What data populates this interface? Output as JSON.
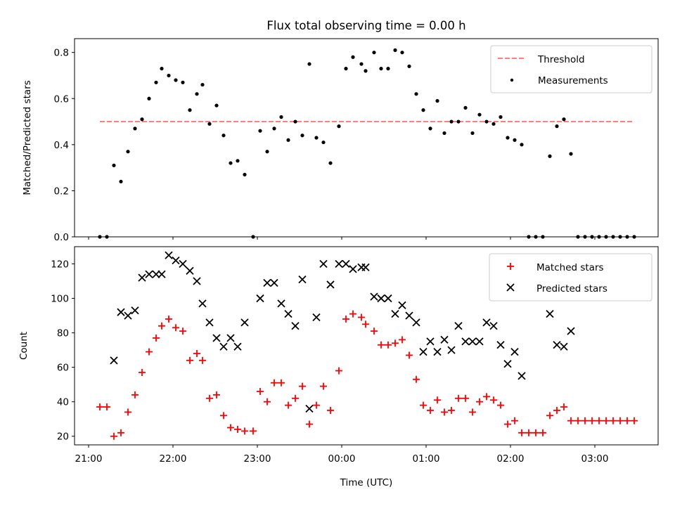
{
  "chart_data": [
    {
      "type": "line+scatter",
      "title": "Flux total observing time = 0.00 h",
      "xlabel": "",
      "ylabel": "Matched/Predicted stars",
      "ylim": [
        0,
        0.86
      ],
      "xlim": [
        "20:50",
        "03:45"
      ],
      "yticks": [
        0.0,
        0.2,
        0.4,
        0.6,
        0.8
      ],
      "ytick_labels": [
        "0.0",
        "0.2",
        "0.4",
        "0.6",
        "0.8"
      ],
      "legend": {
        "placement": "top-right",
        "entries": [
          "Threshold",
          "Measurements"
        ]
      },
      "threshold": {
        "name": "Threshold",
        "value": 0.5,
        "x_start": "21:08",
        "x_end": "03:28",
        "color": "#ff7f7f",
        "style": "dashed"
      },
      "series": [
        {
          "name": "Measurements",
          "marker": "dot",
          "color": "#000000",
          "points": [
            [
              "21:08",
              0.0
            ],
            [
              "21:13",
              0.0
            ],
            [
              "21:18",
              0.31
            ],
            [
              "21:23",
              0.24
            ],
            [
              "21:28",
              0.37
            ],
            [
              "21:33",
              0.47
            ],
            [
              "21:38",
              0.51
            ],
            [
              "21:43",
              0.6
            ],
            [
              "21:48",
              0.67
            ],
            [
              "21:52",
              0.73
            ],
            [
              "21:57",
              0.7
            ],
            [
              "22:02",
              0.68
            ],
            [
              "22:07",
              0.67
            ],
            [
              "22:12",
              0.55
            ],
            [
              "22:17",
              0.62
            ],
            [
              "22:21",
              0.66
            ],
            [
              "22:26",
              0.49
            ],
            [
              "22:31",
              0.57
            ],
            [
              "22:36",
              0.44
            ],
            [
              "22:41",
              0.32
            ],
            [
              "22:46",
              0.33
            ],
            [
              "22:51",
              0.27
            ],
            [
              "22:57",
              0.0
            ],
            [
              "23:02",
              0.46
            ],
            [
              "23:07",
              0.37
            ],
            [
              "23:12",
              0.47
            ],
            [
              "23:17",
              0.52
            ],
            [
              "23:22",
              0.42
            ],
            [
              "23:27",
              0.5
            ],
            [
              "23:32",
              0.44
            ],
            [
              "23:37",
              0.75
            ],
            [
              "23:42",
              0.43
            ],
            [
              "23:47",
              0.41
            ],
            [
              "23:52",
              0.32
            ],
            [
              "23:58",
              0.48
            ],
            [
              "00:03",
              0.73
            ],
            [
              "00:08",
              0.78
            ],
            [
              "00:14",
              0.75
            ],
            [
              "00:17",
              0.72
            ],
            [
              "00:23",
              0.8
            ],
            [
              "00:28",
              0.73
            ],
            [
              "00:33",
              0.73
            ],
            [
              "00:38",
              0.81
            ],
            [
              "00:43",
              0.8
            ],
            [
              "00:48",
              0.74
            ],
            [
              "00:53",
              0.62
            ],
            [
              "00:58",
              0.55
            ],
            [
              "01:03",
              0.47
            ],
            [
              "01:08",
              0.59
            ],
            [
              "01:13",
              0.45
            ],
            [
              "01:18",
              0.5
            ],
            [
              "01:23",
              0.5
            ],
            [
              "01:28",
              0.56
            ],
            [
              "01:33",
              0.45
            ],
            [
              "01:38",
              0.53
            ],
            [
              "01:43",
              0.5
            ],
            [
              "01:48",
              0.49
            ],
            [
              "01:53",
              0.52
            ],
            [
              "01:58",
              0.43
            ],
            [
              "02:03",
              0.42
            ],
            [
              "02:08",
              0.4
            ],
            [
              "02:13",
              0.0
            ],
            [
              "02:18",
              0.0
            ],
            [
              "02:23",
              0.0
            ],
            [
              "02:28",
              0.35
            ],
            [
              "02:33",
              0.48
            ],
            [
              "02:38",
              0.51
            ],
            [
              "02:43",
              0.36
            ],
            [
              "02:48",
              0.0
            ],
            [
              "02:53",
              0.0
            ],
            [
              "02:58",
              0.0
            ],
            [
              "03:03",
              0.0
            ],
            [
              "03:08",
              0.0
            ],
            [
              "03:13",
              0.0
            ],
            [
              "03:18",
              0.0
            ],
            [
              "03:23",
              0.0
            ],
            [
              "03:28",
              0.0
            ]
          ]
        }
      ]
    },
    {
      "type": "scatter",
      "title": "",
      "xlabel": "Time (UTC)",
      "ylabel": "Count",
      "ylim": [
        15,
        130
      ],
      "xlim": [
        "20:50",
        "03:45"
      ],
      "yticks": [
        20,
        40,
        60,
        80,
        100,
        120
      ],
      "ytick_labels": [
        "20",
        "40",
        "60",
        "80",
        "100",
        "120"
      ],
      "xtick_labels": [
        "21:00",
        "22:00",
        "23:00",
        "00:00",
        "01:00",
        "02:00",
        "03:00"
      ],
      "legend": {
        "placement": "top-right",
        "entries": [
          "Matched stars",
          "Predicted stars"
        ]
      },
      "series": [
        {
          "name": "Matched stars",
          "marker": "plus",
          "color": "#ff0000",
          "points": [
            [
              "21:08",
              37
            ],
            [
              "21:13",
              37
            ],
            [
              "21:18",
              20
            ],
            [
              "21:23",
              22
            ],
            [
              "21:28",
              34
            ],
            [
              "21:33",
              44
            ],
            [
              "21:38",
              57
            ],
            [
              "21:43",
              69
            ],
            [
              "21:48",
              77
            ],
            [
              "21:52",
              84
            ],
            [
              "21:57",
              88
            ],
            [
              "22:02",
              83
            ],
            [
              "22:07",
              81
            ],
            [
              "22:12",
              64
            ],
            [
              "22:17",
              68
            ],
            [
              "22:21",
              64
            ],
            [
              "22:26",
              42
            ],
            [
              "22:31",
              44
            ],
            [
              "22:36",
              32
            ],
            [
              "22:41",
              25
            ],
            [
              "22:46",
              24
            ],
            [
              "22:51",
              23
            ],
            [
              "22:57",
              23
            ],
            [
              "23:02",
              46
            ],
            [
              "23:07",
              40
            ],
            [
              "23:12",
              51
            ],
            [
              "23:17",
              51
            ],
            [
              "23:22",
              38
            ],
            [
              "23:27",
              42
            ],
            [
              "23:32",
              49
            ],
            [
              "23:37",
              27
            ],
            [
              "23:42",
              38
            ],
            [
              "23:47",
              49
            ],
            [
              "23:52",
              35
            ],
            [
              "23:58",
              58
            ],
            [
              "00:03",
              88
            ],
            [
              "00:08",
              91
            ],
            [
              "00:14",
              89
            ],
            [
              "00:17",
              85
            ],
            [
              "00:23",
              81
            ],
            [
              "00:28",
              73
            ],
            [
              "00:33",
              73
            ],
            [
              "00:38",
              74
            ],
            [
              "00:43",
              76
            ],
            [
              "00:48",
              67
            ],
            [
              "00:53",
              53
            ],
            [
              "00:58",
              38
            ],
            [
              "01:03",
              35
            ],
            [
              "01:08",
              41
            ],
            [
              "01:13",
              34
            ],
            [
              "01:18",
              35
            ],
            [
              "01:23",
              42
            ],
            [
              "01:28",
              42
            ],
            [
              "01:33",
              34
            ],
            [
              "01:38",
              40
            ],
            [
              "01:43",
              43
            ],
            [
              "01:48",
              41
            ],
            [
              "01:53",
              38
            ],
            [
              "01:58",
              27
            ],
            [
              "02:03",
              29
            ],
            [
              "02:08",
              22
            ],
            [
              "02:13",
              22
            ],
            [
              "02:18",
              22
            ],
            [
              "02:23",
              22
            ],
            [
              "02:28",
              32
            ],
            [
              "02:33",
              35
            ],
            [
              "02:38",
              37
            ],
            [
              "02:43",
              29
            ],
            [
              "02:48",
              29
            ],
            [
              "02:53",
              29
            ],
            [
              "02:58",
              29
            ],
            [
              "03:03",
              29
            ],
            [
              "03:08",
              29
            ],
            [
              "03:13",
              29
            ],
            [
              "03:18",
              29
            ],
            [
              "03:23",
              29
            ],
            [
              "03:28",
              29
            ]
          ]
        },
        {
          "name": "Predicted stars",
          "marker": "x",
          "color": "#000000",
          "points": [
            [
              "21:18",
              64
            ],
            [
              "21:23",
              92
            ],
            [
              "21:28",
              90
            ],
            [
              "21:33",
              93
            ],
            [
              "21:38",
              112
            ],
            [
              "21:43",
              114
            ],
            [
              "21:48",
              114
            ],
            [
              "21:52",
              114
            ],
            [
              "21:57",
              125
            ],
            [
              "22:02",
              122
            ],
            [
              "22:07",
              120
            ],
            [
              "22:12",
              116
            ],
            [
              "22:17",
              110
            ],
            [
              "22:21",
              97
            ],
            [
              "22:26",
              86
            ],
            [
              "22:31",
              77
            ],
            [
              "22:36",
              72
            ],
            [
              "22:41",
              77
            ],
            [
              "22:46",
              72
            ],
            [
              "22:51",
              86
            ],
            [
              "23:02",
              100
            ],
            [
              "23:07",
              109
            ],
            [
              "23:12",
              109
            ],
            [
              "23:17",
              97
            ],
            [
              "23:22",
              91
            ],
            [
              "23:27",
              84
            ],
            [
              "23:32",
              111
            ],
            [
              "23:37",
              36
            ],
            [
              "23:42",
              89
            ],
            [
              "23:47",
              120
            ],
            [
              "23:52",
              108
            ],
            [
              "23:58",
              120
            ],
            [
              "00:03",
              120
            ],
            [
              "00:08",
              117
            ],
            [
              "00:14",
              118
            ],
            [
              "00:17",
              118
            ],
            [
              "00:23",
              101
            ],
            [
              "00:28",
              100
            ],
            [
              "00:33",
              100
            ],
            [
              "00:38",
              91
            ],
            [
              "00:43",
              96
            ],
            [
              "00:48",
              90
            ],
            [
              "00:53",
              86
            ],
            [
              "00:58",
              69
            ],
            [
              "01:03",
              75
            ],
            [
              "01:08",
              69
            ],
            [
              "01:13",
              76
            ],
            [
              "01:18",
              70
            ],
            [
              "01:23",
              84
            ],
            [
              "01:28",
              75
            ],
            [
              "01:33",
              75
            ],
            [
              "01:38",
              75
            ],
            [
              "01:43",
              86
            ],
            [
              "01:48",
              84
            ],
            [
              "01:53",
              73
            ],
            [
              "01:58",
              62
            ],
            [
              "02:03",
              69
            ],
            [
              "02:08",
              55
            ],
            [
              "02:28",
              91
            ],
            [
              "02:33",
              73
            ],
            [
              "02:38",
              72
            ],
            [
              "02:43",
              81
            ]
          ]
        }
      ]
    }
  ]
}
